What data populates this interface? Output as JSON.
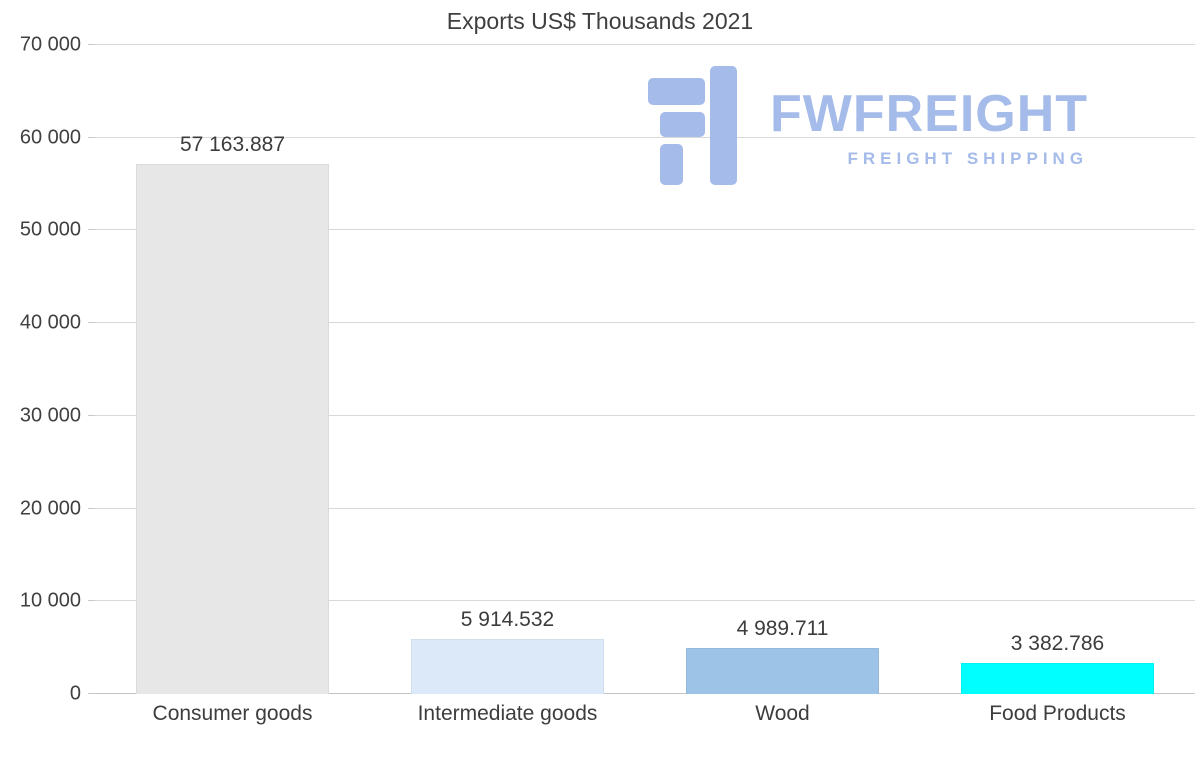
{
  "chart_data": {
    "type": "bar",
    "title": "Exports US$ Thousands 2021",
    "categories": [
      "Consumer goods",
      "Intermediate goods",
      "Wood",
      "Food Products"
    ],
    "values": [
      57163.887,
      5914.532,
      4989.711,
      3382.786
    ],
    "value_labels": [
      "57 163.887",
      "5 914.532",
      "4 989.711",
      "3 382.786"
    ],
    "bar_colors": [
      "#e7e7e7",
      "#dce9f8",
      "#9dc3e6",
      "#00ffff"
    ],
    "xlabel": "",
    "ylabel": "",
    "ylim": [
      0,
      70000
    ],
    "ytick_interval": 10000,
    "ytick_labels": [
      "0",
      "10 000",
      "20 000",
      "30 000",
      "40 000",
      "50 000",
      "60 000",
      "70 000"
    ],
    "grid": true,
    "legend": false
  },
  "watermark": {
    "brand": "FWFREIGHT",
    "tagline": "FREIGHT SHIPPING",
    "color": "#a5bbe9"
  },
  "colors": {
    "text": "#404040",
    "gridline": "#d9d9d9",
    "axis_line": "#c4c4c4",
    "background": "#ffffff"
  }
}
